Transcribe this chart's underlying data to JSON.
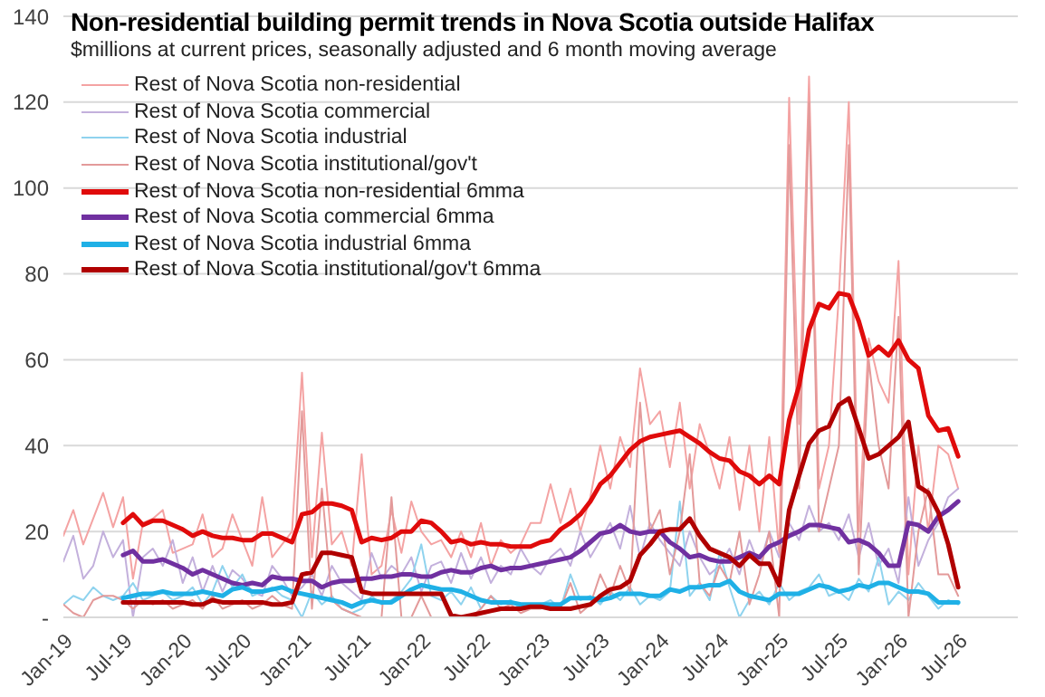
{
  "chart_data": {
    "type": "line",
    "title": "Non-residential building permit trends in Nova Scotia outside Halifax",
    "subtitle": "$millions at current prices, seasonally adjusted and 6 month moving average",
    "x": [
      "2019-01",
      "2019-02",
      "2019-03",
      "2019-04",
      "2019-05",
      "2019-06",
      "2019-07",
      "2019-08",
      "2019-09",
      "2019-10",
      "2019-11",
      "2019-12",
      "2020-01",
      "2020-02",
      "2020-03",
      "2020-04",
      "2020-05",
      "2020-06",
      "2020-07",
      "2020-08",
      "2020-09",
      "2020-10",
      "2020-11",
      "2020-12",
      "2021-01",
      "2021-02",
      "2021-03",
      "2021-04",
      "2021-05",
      "2021-06",
      "2021-07",
      "2021-08",
      "2021-09",
      "2021-10",
      "2021-11",
      "2021-12",
      "2022-01",
      "2022-02",
      "2022-03",
      "2022-04",
      "2022-05",
      "2022-06",
      "2022-07",
      "2022-08",
      "2022-09",
      "2022-10",
      "2022-11",
      "2022-12",
      "2023-01",
      "2023-02",
      "2023-03",
      "2023-04",
      "2023-05",
      "2023-06",
      "2023-07",
      "2023-08",
      "2023-09",
      "2023-10",
      "2023-11",
      "2023-12",
      "2024-01",
      "2024-02",
      "2024-03",
      "2024-04",
      "2024-05",
      "2024-06",
      "2024-07",
      "2024-08",
      "2024-09",
      "2024-10",
      "2024-11",
      "2024-12",
      "2025-01",
      "2025-02",
      "2025-03",
      "2025-04",
      "2025-05",
      "2025-06",
      "2025-07",
      "2025-08",
      "2025-09",
      "2025-10",
      "2025-11",
      "2025-12",
      "2026-01",
      "2026-02",
      "2026-03",
      "2026-04",
      "2026-05",
      "2026-06",
      "2026-07"
    ],
    "series": [
      {
        "name": "Rest of Nova Scotia non-residential",
        "color": "#f4a3a3",
        "values": [
          19,
          25,
          17,
          23,
          29,
          21,
          28,
          9,
          22,
          23,
          25,
          15,
          16,
          17,
          24,
          14,
          16,
          24,
          18,
          12,
          28,
          14,
          17,
          20,
          57,
          14,
          43,
          17,
          20,
          12,
          38,
          10,
          12,
          25,
          15,
          27,
          20,
          17,
          18,
          14,
          20,
          14,
          22,
          12,
          18,
          15,
          17,
          22,
          22,
          31,
          22,
          30,
          20,
          28,
          40,
          30,
          42,
          35,
          58,
          45,
          48,
          35,
          50,
          30,
          45,
          38,
          30,
          42,
          25,
          40,
          20,
          42,
          15,
          121,
          45,
          126,
          30,
          40,
          75,
          120,
          20,
          65,
          55,
          50,
          83,
          10,
          40,
          20,
          40,
          38,
          30
        ]
      },
      {
        "name": "Rest of Nova Scotia commercial",
        "color": "#c3b0dc",
        "values": [
          13,
          19,
          9,
          12,
          20,
          14,
          18,
          0,
          14,
          16,
          12,
          18,
          8,
          14,
          6,
          12,
          6,
          11,
          9,
          6,
          5,
          12,
          9,
          5,
          7,
          10,
          5,
          12,
          8,
          6,
          4,
          15,
          9,
          12,
          10,
          14,
          6,
          12,
          13,
          8,
          15,
          9,
          14,
          8,
          12,
          10,
          16,
          12,
          10,
          14,
          16,
          12,
          20,
          14,
          18,
          22,
          16,
          26,
          14,
          22,
          18,
          15,
          12,
          20,
          14,
          10,
          12,
          16,
          10,
          18,
          12,
          20,
          14,
          22,
          18,
          26,
          20,
          22,
          18,
          24,
          14,
          22,
          12,
          16,
          8,
          28,
          12,
          18,
          22,
          28,
          30
        ]
      },
      {
        "name": "Rest of Nova Scotia industrial",
        "color": "#8fd3ee",
        "values": [
          3,
          5,
          4,
          7,
          5,
          4,
          5,
          8,
          4,
          5,
          6,
          4,
          5,
          7,
          3,
          6,
          12,
          7,
          10,
          5,
          6,
          7,
          5,
          4,
          0,
          6,
          3,
          5,
          2,
          1,
          2,
          5,
          3,
          4,
          6,
          9,
          17,
          5,
          4,
          6,
          3,
          7,
          2,
          5,
          3,
          4,
          2,
          3,
          3,
          4,
          2,
          10,
          4,
          5,
          3,
          6,
          4,
          7,
          3,
          5,
          4,
          6,
          27,
          5,
          8,
          4,
          15,
          7,
          0,
          4,
          6,
          3,
          8,
          4,
          6,
          7,
          10,
          5,
          6,
          4,
          9,
          6,
          14,
          3,
          6,
          4,
          8,
          5,
          2,
          4,
          3
        ]
      },
      {
        "name": "Rest of Nova Scotia institutional/gov't",
        "color": "#e39a9a",
        "values": [
          3,
          1,
          0,
          4,
          5,
          5,
          4,
          2,
          4,
          3,
          4,
          2,
          3,
          4,
          2,
          5,
          2,
          3,
          4,
          2,
          3,
          5,
          3,
          2,
          48,
          2,
          30,
          4,
          2,
          1,
          0,
          0,
          0,
          28,
          0,
          0,
          5,
          0,
          0,
          0,
          0,
          0,
          2,
          5,
          2,
          3,
          1,
          2,
          2,
          3,
          2,
          8,
          1,
          3,
          10,
          5,
          12,
          6,
          50,
          20,
          25,
          10,
          20,
          38,
          8,
          5,
          12,
          8,
          20,
          3,
          10,
          20,
          0,
          110,
          30,
          120,
          20,
          30,
          40,
          110,
          10,
          60,
          40,
          30,
          70,
          0,
          20,
          30,
          10,
          10,
          5
        ]
      },
      {
        "name": "Rest of Nova Scotia non-residential 6mma",
        "color": "#e00b0b",
        "values": [
          null,
          null,
          null,
          null,
          null,
          null,
          22,
          24,
          21.5,
          22.5,
          22.5,
          21.5,
          20.5,
          19,
          20,
          19,
          18.5,
          18.5,
          18,
          18,
          19.5,
          19.5,
          18.5,
          17.5,
          24,
          24.5,
          26.5,
          26.5,
          26,
          25,
          17.5,
          18.5,
          18,
          18.5,
          20,
          20,
          22.5,
          22,
          20,
          17.5,
          18,
          17,
          17.5,
          17,
          17,
          16.5,
          16.5,
          16.5,
          17.5,
          18,
          20.5,
          22,
          24,
          27,
          31,
          33,
          36,
          39,
          41,
          42,
          42.5,
          43,
          43.5,
          42,
          40.5,
          38.5,
          37,
          36.5,
          34,
          33,
          31,
          33,
          31,
          46,
          54,
          67,
          73,
          72,
          75.5,
          75,
          69,
          61,
          63,
          61,
          64.5,
          60,
          58,
          47,
          43.5,
          44,
          37.5
        ]
      },
      {
        "name": "Rest of Nova Scotia commercial 6mma",
        "color": "#7030a0",
        "values": [
          null,
          null,
          null,
          null,
          null,
          null,
          14.5,
          15.5,
          13,
          13,
          13.5,
          12.5,
          11.5,
          10,
          11,
          10,
          9,
          8,
          7.5,
          8,
          7.5,
          9.5,
          9,
          9,
          8.5,
          8.5,
          7,
          8,
          8.5,
          8.5,
          9,
          9,
          9.5,
          9.5,
          10,
          10,
          9.5,
          9.5,
          10.5,
          11,
          10.5,
          10.5,
          11.5,
          12,
          11,
          11.5,
          11.5,
          12,
          12.5,
          13,
          13.5,
          14,
          15.5,
          17.5,
          19.5,
          20,
          21.5,
          20,
          19.5,
          20,
          20,
          17.5,
          16,
          14,
          14.5,
          13.5,
          13,
          13,
          14,
          15,
          14,
          16.5,
          17.5,
          19,
          20,
          21.5,
          21.5,
          21,
          20.5,
          17.5,
          18,
          17,
          15,
          12,
          12,
          22,
          21.5,
          20,
          23.5,
          25,
          27
        ]
      },
      {
        "name": "Rest of Nova Scotia industrial 6mma",
        "color": "#1fb0e6",
        "values": [
          null,
          null,
          null,
          null,
          null,
          null,
          4.5,
          5,
          5.5,
          5.5,
          6,
          5.5,
          5.5,
          5.5,
          6,
          5.5,
          5,
          6.5,
          7,
          6,
          6,
          6.5,
          7,
          6,
          5.5,
          5,
          4.5,
          4,
          3.5,
          2.5,
          3.5,
          4,
          3.5,
          3.5,
          5,
          6.5,
          7.5,
          7,
          6.5,
          6.5,
          6,
          5,
          4,
          3.5,
          3.5,
          3.5,
          3,
          3,
          3,
          3,
          3,
          4.5,
          4.5,
          4.5,
          4,
          4.5,
          5.5,
          5.5,
          5.5,
          5,
          5,
          6.5,
          6,
          7,
          7,
          7.5,
          7.5,
          8.5,
          6,
          5,
          4.5,
          4,
          5.5,
          5.5,
          5.5,
          6.5,
          7.5,
          7,
          6,
          6.5,
          7.5,
          7,
          8,
          8,
          7,
          6,
          6,
          5.5,
          3.5,
          3.5,
          3.5
        ]
      },
      {
        "name": "Rest of Nova Scotia institutional/gov't 6mma",
        "color": "#b00000",
        "values": [
          null,
          null,
          null,
          null,
          null,
          null,
          3.5,
          3.5,
          3.5,
          3.5,
          3.5,
          3.5,
          3.5,
          3,
          3,
          4,
          3.5,
          3.5,
          3.5,
          3.5,
          3.5,
          3,
          3,
          3.5,
          10,
          10.5,
          15,
          15,
          14.5,
          14,
          6,
          5.5,
          5.5,
          5.5,
          5.5,
          5.5,
          5.5,
          5.5,
          5.5,
          0.5,
          0,
          0.5,
          1,
          1.5,
          2,
          2,
          2,
          2.5,
          2.5,
          2,
          2,
          2,
          2.5,
          3,
          5,
          6.5,
          7,
          8.5,
          14.5,
          17,
          20,
          20.5,
          20.5,
          23,
          19,
          16,
          15,
          14,
          12,
          14.5,
          12.5,
          12.5,
          7.5,
          25,
          33,
          40.5,
          43.5,
          44.5,
          49.5,
          51,
          44,
          37,
          38,
          40,
          42,
          45.5,
          30.5,
          29,
          24.5,
          17,
          7
        ]
      }
    ],
    "xlim": [
      "2019-01",
      "2027-01"
    ],
    "xticks": [
      {
        "value": "2019-01",
        "label": "Jan-19"
      },
      {
        "value": "2019-07",
        "label": "Jul-19"
      },
      {
        "value": "2020-01",
        "label": "Jan-20"
      },
      {
        "value": "2020-07",
        "label": "Jul-20"
      },
      {
        "value": "2021-01",
        "label": "Jan-21"
      },
      {
        "value": "2021-07",
        "label": "Jul-21"
      },
      {
        "value": "2022-01",
        "label": "Jan-22"
      },
      {
        "value": "2022-07",
        "label": "Jul-22"
      },
      {
        "value": "2023-01",
        "label": "Jan-23"
      },
      {
        "value": "2023-07",
        "label": "Jul-23"
      },
      {
        "value": "2024-01",
        "label": "Jan-24"
      },
      {
        "value": "2024-07",
        "label": "Jul-24"
      },
      {
        "value": "2025-01",
        "label": "Jan-25"
      },
      {
        "value": "2025-07",
        "label": "Jul-25"
      },
      {
        "value": "2026-01",
        "label": "Jan-26"
      },
      {
        "value": "2026-07",
        "label": "Jul-26"
      }
    ],
    "ylim": [
      0,
      140
    ],
    "yticks": [
      {
        "value": 0,
        "label": "-"
      },
      20,
      40,
      60,
      80,
      100,
      120,
      140
    ],
    "grid": "y",
    "legend": "top left"
  }
}
